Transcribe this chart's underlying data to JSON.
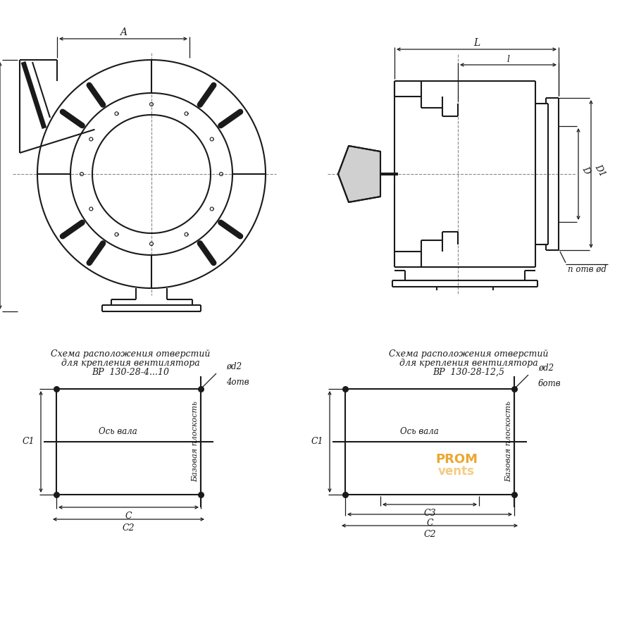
{
  "bg_color": "#ffffff",
  "line_color": "#1a1a1a",
  "text_color": "#1a1a1a",
  "watermark_color": "#e8980a",
  "title_bl_1": "Схема расположения отверстий",
  "title_bl_2": "для крепления вентилятора",
  "title_bl_3": "ВР  130-28-4...10",
  "title_br_1": "Схема расположения отверстий",
  "title_br_2": "для крепления вентилятора",
  "title_br_3": "ВР  130-28-12,5"
}
